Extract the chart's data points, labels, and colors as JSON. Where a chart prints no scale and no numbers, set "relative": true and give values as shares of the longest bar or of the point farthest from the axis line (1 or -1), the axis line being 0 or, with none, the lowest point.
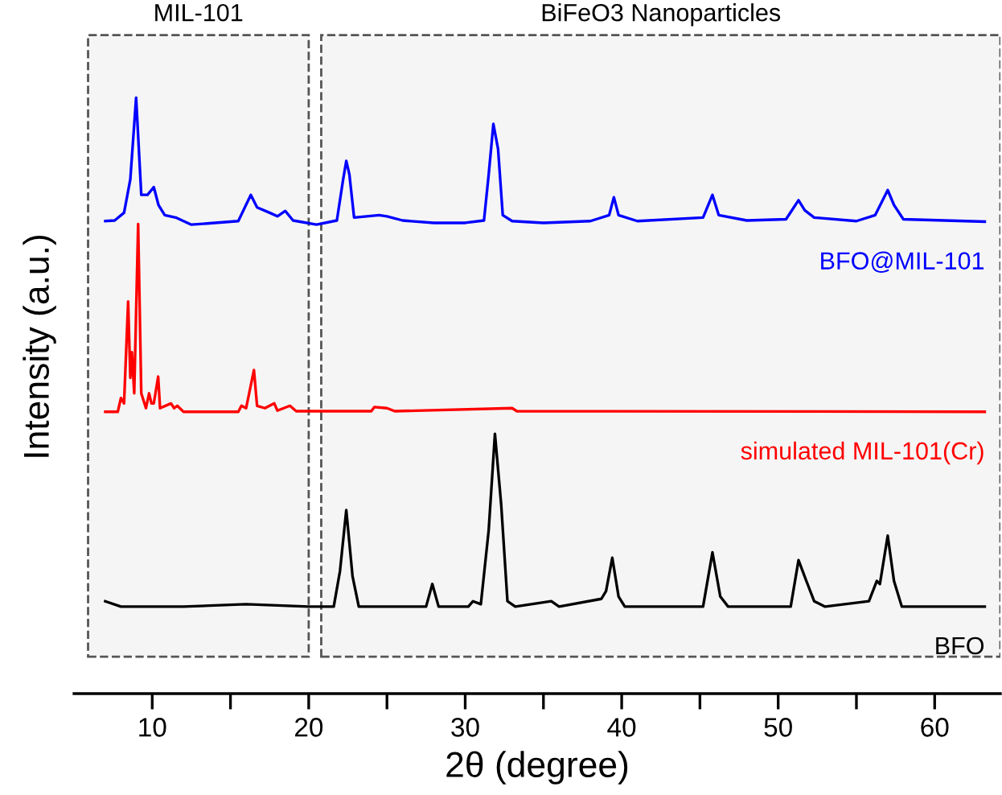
{
  "chart_data": {
    "type": "line",
    "relative": true,
    "xlabel": "2θ (degree)",
    "ylabel": "Intensity (a.u.)",
    "xlim": [
      5,
      64.2
    ],
    "xticks": [
      10,
      {
        "value": 15,
        "label": null
      },
      20,
      {
        "value": 25,
        "label": null
      },
      30,
      {
        "value": 35,
        "label": null
      },
      40,
      {
        "value": 45,
        "label": null
      },
      50,
      {
        "value": 55,
        "label": null
      },
      60
    ],
    "grid": false,
    "legend": false,
    "marker": "none",
    "line_style": "solid",
    "bands": [
      {
        "axis": "x",
        "from": 5.9,
        "to": 20.0,
        "label": "MIL-101",
        "color": "#555555"
      },
      {
        "axis": "x",
        "from": 20.8,
        "to": 64.2,
        "label": "BiFeO3 Nanoparticles",
        "color": "#555555"
      }
    ],
    "series": [
      {
        "name": "BFO@MIL-101",
        "color": "#0000ff",
        "x": [
          7.0,
          7.6,
          8.2,
          8.6,
          8.97,
          9.3,
          9.7,
          10.1,
          10.4,
          10.8,
          11.5,
          12.5,
          14,
          15.5,
          16.3,
          16.7,
          17.5,
          18,
          18.5,
          19,
          20.5,
          21.8,
          22.2,
          22.4,
          22.6,
          22.9,
          24.5,
          25,
          26,
          28,
          30,
          31.2,
          31.5,
          31.8,
          32.1,
          32.4,
          33,
          35,
          38,
          39.2,
          39.5,
          39.8,
          41,
          45.2,
          45.8,
          46.2,
          48,
          50.5,
          51.0,
          51.3,
          51.7,
          52.3,
          55,
          56.2,
          57.0,
          57.4,
          58,
          63.2
        ],
        "values": [
          0.793,
          0.794,
          0.807,
          0.863,
          1.0,
          0.837,
          0.837,
          0.85,
          0.82,
          0.803,
          0.799,
          0.787,
          0.79,
          0.793,
          0.837,
          0.816,
          0.807,
          0.801,
          0.81,
          0.794,
          0.787,
          0.794,
          0.863,
          0.894,
          0.871,
          0.799,
          0.803,
          0.801,
          0.794,
          0.79,
          0.79,
          0.794,
          0.871,
          0.956,
          0.914,
          0.803,
          0.793,
          0.79,
          0.793,
          0.803,
          0.833,
          0.803,
          0.793,
          0.799,
          0.837,
          0.803,
          0.794,
          0.796,
          0.816,
          0.828,
          0.811,
          0.799,
          0.793,
          0.803,
          0.845,
          0.82,
          0.796,
          0.792
        ]
      },
      {
        "name": "simulated MIL-101(Cr)",
        "color": "#ff0000",
        "x": [
          7.0,
          7.8,
          8.0,
          8.2,
          8.46,
          8.6,
          8.7,
          8.85,
          9.1,
          9.3,
          9.6,
          9.8,
          9.95,
          10.1,
          10.38,
          10.5,
          11.2,
          11.4,
          11.6,
          12,
          15.5,
          15.7,
          16.0,
          16.5,
          16.7,
          17.2,
          17.8,
          18,
          18.8,
          19.2,
          24,
          24.2,
          25,
          25.5,
          33,
          33.3,
          63.2
        ],
        "values": [
          0.473,
          0.473,
          0.496,
          0.487,
          0.658,
          0.53,
          0.573,
          0.504,
          0.788,
          0.504,
          0.479,
          0.504,
          0.487,
          0.487,
          0.532,
          0.479,
          0.487,
          0.479,
          0.483,
          0.473,
          0.473,
          0.483,
          0.479,
          0.543,
          0.483,
          0.479,
          0.487,
          0.475,
          0.483,
          0.474,
          0.474,
          0.481,
          0.479,
          0.474,
          0.479,
          0.474,
          0.473
        ]
      },
      {
        "name": "BFO",
        "color": "#000000",
        "x": [
          7.0,
          8,
          12,
          16,
          20,
          21.6,
          22.0,
          22.4,
          22.8,
          23.2,
          27.5,
          27.9,
          28.3,
          30.2,
          30.5,
          31.0,
          31.5,
          31.9,
          32.3,
          32.7,
          33.2,
          35.5,
          36,
          38.7,
          39.0,
          39.4,
          39.8,
          40.2,
          45.2,
          45.8,
          46.3,
          46.8,
          50.8,
          51.3,
          51.8,
          52.3,
          53,
          55.8,
          56.3,
          56.5,
          57.0,
          57.4,
          57.9,
          63.2
        ],
        "values": [
          0.155,
          0.146,
          0.146,
          0.15,
          0.146,
          0.146,
          0.206,
          0.308,
          0.197,
          0.146,
          0.146,
          0.184,
          0.146,
          0.146,
          0.155,
          0.15,
          0.274,
          0.436,
          0.317,
          0.155,
          0.146,
          0.155,
          0.146,
          0.159,
          0.172,
          0.228,
          0.163,
          0.146,
          0.146,
          0.237,
          0.163,
          0.146,
          0.146,
          0.224,
          0.189,
          0.155,
          0.146,
          0.155,
          0.189,
          0.184,
          0.265,
          0.189,
          0.146,
          0.146
        ]
      }
    ]
  }
}
